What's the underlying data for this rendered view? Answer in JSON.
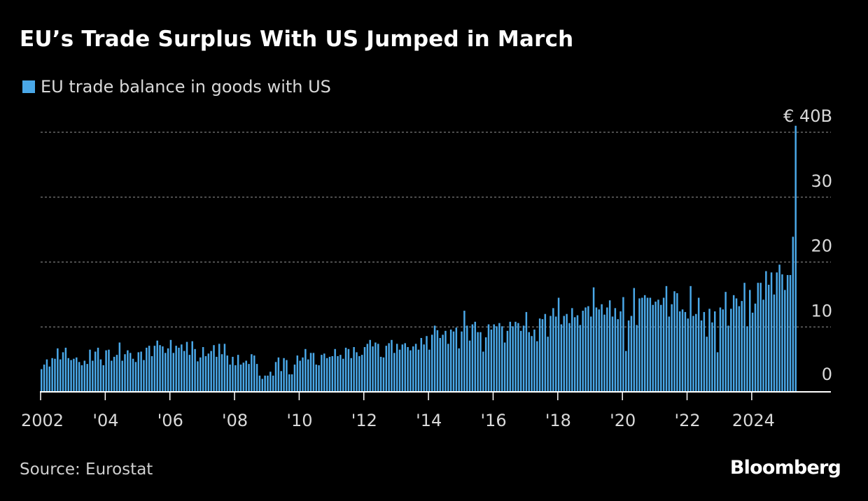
{
  "chart_data": {
    "type": "bar",
    "title": "EU’s Trade Surplus With US Jumped in March",
    "legend": [
      "EU trade balance in goods with US"
    ],
    "series": [
      {
        "name": "EU trade balance in goods with US",
        "color": "#4aa8e8",
        "values": [
          3.5,
          4.2,
          5.0,
          3.9,
          5.2,
          5.1,
          6.7,
          5.0,
          6.1,
          6.8,
          5.2,
          4.9,
          5.1,
          5.3,
          4.6,
          4.1,
          4.8,
          4.3,
          6.5,
          4.8,
          6.2,
          6.8,
          5.0,
          4.1,
          6.4,
          6.5,
          4.8,
          5.4,
          5.7,
          7.6,
          4.8,
          5.8,
          6.4,
          6.0,
          5.1,
          4.6,
          6.1,
          6.2,
          4.9,
          6.8,
          7.1,
          5.5,
          7.1,
          7.9,
          7.2,
          7.0,
          6.0,
          6.7,
          8.0,
          6.0,
          7.1,
          6.8,
          7.3,
          6.3,
          7.7,
          5.7,
          7.8,
          6.6,
          4.7,
          5.3,
          6.9,
          5.5,
          5.9,
          6.3,
          7.2,
          5.4,
          7.4,
          5.8,
          7.4,
          5.6,
          4.2,
          5.4,
          4.1,
          5.7,
          4.2,
          4.5,
          4.8,
          4.3,
          5.8,
          5.6,
          4.3,
          2.5,
          2.0,
          2.5,
          2.5,
          3.1,
          2.5,
          4.6,
          5.3,
          3.2,
          5.2,
          4.9,
          2.7,
          2.7,
          4.2,
          5.6,
          4.8,
          5.3,
          6.6,
          5.0,
          6.0,
          6.0,
          4.2,
          4.1,
          5.7,
          5.9,
          5.2,
          5.4,
          5.5,
          6.6,
          5.5,
          5.7,
          5.1,
          6.8,
          6.6,
          5.2,
          6.9,
          6.1,
          5.5,
          5.7,
          6.9,
          7.4,
          8.0,
          7.0,
          7.6,
          7.4,
          5.4,
          5.3,
          7.1,
          7.5,
          8.0,
          6.0,
          7.4,
          6.5,
          7.3,
          7.5,
          6.9,
          6.4,
          7.0,
          7.4,
          6.5,
          8.3,
          7.3,
          8.6,
          6.5,
          8.8,
          10.2,
          9.5,
          8.3,
          8.8,
          9.4,
          7.4,
          9.6,
          9.3,
          9.9,
          6.7,
          9.3,
          12.5,
          10.2,
          7.9,
          10.4,
          10.8,
          9.2,
          9.2,
          6.2,
          8.4,
          10.4,
          9.6,
          10.4,
          10.1,
          10.6,
          10.1,
          7.6,
          9.4,
          10.8,
          10.1,
          10.8,
          10.6,
          9.4,
          10.2,
          12.3,
          9.2,
          8.6,
          9.6,
          7.8,
          11.3,
          11.2,
          12.0,
          8.5,
          11.7,
          12.9,
          11.6,
          14.5,
          10.4,
          11.7,
          12.0,
          10.6,
          12.9,
          11.5,
          11.8,
          10.3,
          12.5,
          13.0,
          13.2,
          11.6,
          16.1,
          13.0,
          12.7,
          13.5,
          11.9,
          13.0,
          14.1,
          11.6,
          12.9,
          11.2,
          12.4,
          14.6,
          6.3,
          11.0,
          11.7,
          16.0,
          10.3,
          14.4,
          14.5,
          14.9,
          14.5,
          14.5,
          13.4,
          13.9,
          14.2,
          13.4,
          14.5,
          16.3,
          11.6,
          13.5,
          15.5,
          15.2,
          12.4,
          12.7,
          12.3,
          11.3,
          16.3,
          11.7,
          12.0,
          14.5,
          11.0,
          12.3,
          8.5,
          12.8,
          10.7,
          12.4,
          6.1,
          13.0,
          12.7,
          15.4,
          10.2,
          12.8,
          14.9,
          14.4,
          13.2,
          14.0,
          16.8,
          10.1,
          15.7,
          12.2,
          13.6,
          16.8,
          16.8,
          14.2,
          18.6,
          16.5,
          18.4,
          15.0,
          18.4,
          19.6,
          18.1,
          15.7,
          18.0,
          18.0,
          23.9,
          41.0
        ]
      }
    ],
    "x_tick_labels": [
      "2002",
      "'04",
      "'06",
      "'08",
      "'10",
      "'12",
      "'14",
      "'16",
      "'18",
      "'20",
      "'22",
      "2024"
    ],
    "x_tick_years": [
      2002,
      2004,
      2006,
      2008,
      2010,
      2012,
      2014,
      2016,
      2018,
      2020,
      2022,
      2024
    ],
    "x_start_year": 2002,
    "y_ticks": [
      {
        "value": 0,
        "label": "0"
      },
      {
        "value": 10,
        "label": "10"
      },
      {
        "value": 20,
        "label": "20"
      },
      {
        "value": 30,
        "label": "30"
      },
      {
        "value": 40,
        "label": "€ 40B"
      }
    ],
    "ylim": [
      0,
      40
    ],
    "xlabel": "",
    "ylabel": "",
    "grid": true,
    "legend_position": "top-left"
  },
  "source": "Source: Eurostat",
  "brand": "Bloomberg",
  "colors": {
    "background": "#000000",
    "bar": "#4aa8e8",
    "grid": "#7a7a7a",
    "axis": "#ffffff",
    "tick_text": "#d9d9d9"
  }
}
